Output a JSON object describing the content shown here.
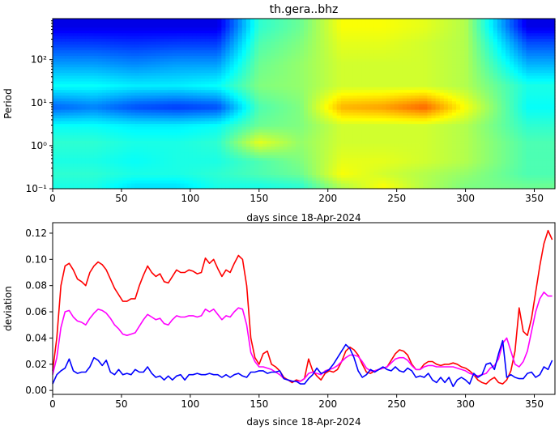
{
  "chart_data": [
    {
      "type": "heatmap",
      "title": "th.gera..bhz",
      "xlabel": "days since 18-Apr-2024",
      "ylabel": "Period",
      "xlim": [
        0,
        365
      ],
      "ylim": [
        0.1,
        900
      ],
      "yscale": "log",
      "xticks": [
        0,
        50,
        100,
        150,
        200,
        250,
        300,
        350
      ],
      "xtick_labels": [
        "0",
        "50",
        "100",
        "150",
        "200",
        "250",
        "300",
        "350"
      ],
      "yticks": [
        0.1,
        1,
        10,
        100
      ],
      "ytick_labels": [
        "10⁻¹",
        "10⁰",
        "10¹",
        "10²"
      ],
      "colormap": "jet",
      "value_range": [
        0,
        1
      ],
      "rows": [
        {
          "period": 0.12,
          "values": [
            0.4,
            0.4,
            0.35,
            0.35,
            0.4,
            0.4,
            0.42,
            0.55,
            0.62,
            0.55,
            0.5,
            0.48
          ]
        },
        {
          "period": 0.22,
          "values": [
            0.42,
            0.42,
            0.4,
            0.4,
            0.42,
            0.45,
            0.48,
            0.62,
            0.58,
            0.55,
            0.52,
            0.45
          ]
        },
        {
          "period": 0.45,
          "values": [
            0.4,
            0.4,
            0.38,
            0.4,
            0.4,
            0.45,
            0.5,
            0.6,
            0.6,
            0.58,
            0.55,
            0.45
          ]
        },
        {
          "period": 1.2,
          "values": [
            0.42,
            0.42,
            0.4,
            0.4,
            0.42,
            0.6,
            0.52,
            0.58,
            0.58,
            0.58,
            0.55,
            0.45
          ]
        },
        {
          "period": 3.0,
          "values": [
            0.38,
            0.38,
            0.36,
            0.36,
            0.38,
            0.48,
            0.5,
            0.58,
            0.58,
            0.58,
            0.55,
            0.42
          ]
        },
        {
          "period": 8.0,
          "values": [
            0.22,
            0.25,
            0.2,
            0.18,
            0.2,
            0.45,
            0.5,
            0.7,
            0.72,
            0.78,
            0.62,
            0.38
          ]
        },
        {
          "period": 25.0,
          "values": [
            0.38,
            0.38,
            0.36,
            0.36,
            0.38,
            0.5,
            0.52,
            0.58,
            0.58,
            0.58,
            0.55,
            0.4
          ]
        },
        {
          "period": 80.0,
          "values": [
            0.28,
            0.28,
            0.26,
            0.28,
            0.28,
            0.48,
            0.52,
            0.58,
            0.58,
            0.58,
            0.55,
            0.3
          ]
        },
        {
          "period": 250.0,
          "values": [
            0.18,
            0.18,
            0.17,
            0.18,
            0.18,
            0.45,
            0.5,
            0.6,
            0.6,
            0.58,
            0.55,
            0.2
          ]
        },
        {
          "period": 600.0,
          "values": [
            0.1,
            0.1,
            0.1,
            0.1,
            0.1,
            0.42,
            0.48,
            0.62,
            0.62,
            0.6,
            0.55,
            0.1
          ]
        }
      ],
      "columns_days": [
        0,
        30,
        60,
        90,
        120,
        150,
        180,
        210,
        240,
        270,
        300,
        345
      ]
    },
    {
      "type": "line",
      "xlabel": "days since 18-Apr-2024",
      "ylabel": "deviation",
      "xlim": [
        0,
        365
      ],
      "ylim": [
        -0.003,
        0.128
      ],
      "xticks": [
        0,
        50,
        100,
        150,
        200,
        250,
        300,
        350
      ],
      "xtick_labels": [
        "0",
        "50",
        "100",
        "150",
        "200",
        "250",
        "300",
        "350"
      ],
      "yticks": [
        0.0,
        0.02,
        0.04,
        0.06,
        0.08,
        0.1,
        0.12
      ],
      "ytick_labels": [
        "0.00",
        "0.02",
        "0.04",
        "0.06",
        "0.08",
        "0.10",
        "0.12"
      ],
      "x": [
        0,
        3,
        6,
        9,
        12,
        15,
        18,
        21,
        24,
        27,
        30,
        33,
        36,
        39,
        42,
        45,
        48,
        51,
        54,
        57,
        60,
        63,
        66,
        69,
        72,
        75,
        78,
        81,
        84,
        87,
        90,
        93,
        96,
        99,
        102,
        105,
        108,
        111,
        114,
        117,
        120,
        123,
        126,
        129,
        132,
        135,
        138,
        141,
        144,
        147,
        150,
        153,
        156,
        159,
        162,
        165,
        168,
        171,
        174,
        177,
        180,
        183,
        186,
        189,
        192,
        195,
        198,
        201,
        204,
        207,
        210,
        213,
        216,
        219,
        222,
        225,
        228,
        231,
        234,
        237,
        240,
        243,
        246,
        249,
        252,
        255,
        258,
        261,
        264,
        267,
        270,
        273,
        276,
        279,
        282,
        285,
        288,
        291,
        294,
        297,
        300,
        303,
        306,
        309,
        312,
        315,
        318,
        321,
        324,
        327,
        330,
        333,
        336,
        339,
        342,
        345,
        348,
        351,
        354,
        357,
        360,
        363
      ],
      "series": [
        {
          "color": "#ff0000",
          "values": [
            0.015,
            0.04,
            0.08,
            0.095,
            0.097,
            0.092,
            0.085,
            0.083,
            0.08,
            0.09,
            0.095,
            0.098,
            0.096,
            0.092,
            0.085,
            0.078,
            0.073,
            0.068,
            0.068,
            0.07,
            0.07,
            0.08,
            0.088,
            0.095,
            0.09,
            0.087,
            0.089,
            0.083,
            0.082,
            0.087,
            0.092,
            0.09,
            0.09,
            0.092,
            0.091,
            0.089,
            0.09,
            0.101,
            0.097,
            0.1,
            0.093,
            0.087,
            0.092,
            0.09,
            0.097,
            0.103,
            0.1,
            0.08,
            0.04,
            0.025,
            0.02,
            0.028,
            0.03,
            0.02,
            0.018,
            0.015,
            0.01,
            0.008,
            0.006,
            0.008,
            0.007,
            0.009,
            0.024,
            0.015,
            0.011,
            0.008,
            0.013,
            0.015,
            0.014,
            0.016,
            0.022,
            0.03,
            0.033,
            0.031,
            0.027,
            0.02,
            0.014,
            0.013,
            0.015,
            0.016,
            0.017,
            0.018,
            0.023,
            0.028,
            0.031,
            0.03,
            0.027,
            0.02,
            0.016,
            0.016,
            0.02,
            0.022,
            0.022,
            0.02,
            0.019,
            0.02,
            0.02,
            0.021,
            0.02,
            0.018,
            0.017,
            0.015,
            0.012,
            0.008,
            0.006,
            0.005,
            0.008,
            0.01,
            0.006,
            0.005,
            0.008,
            0.015,
            0.03,
            0.063,
            0.045,
            0.042,
            0.055,
            0.075,
            0.095,
            0.112,
            0.122,
            0.115
          ]
        },
        {
          "color": "#ff00ff",
          "values": [
            0.012,
            0.025,
            0.048,
            0.06,
            0.061,
            0.056,
            0.053,
            0.052,
            0.05,
            0.055,
            0.059,
            0.062,
            0.061,
            0.059,
            0.055,
            0.05,
            0.047,
            0.043,
            0.042,
            0.043,
            0.044,
            0.049,
            0.054,
            0.058,
            0.056,
            0.054,
            0.055,
            0.051,
            0.05,
            0.054,
            0.057,
            0.056,
            0.056,
            0.057,
            0.057,
            0.056,
            0.057,
            0.062,
            0.06,
            0.062,
            0.058,
            0.054,
            0.057,
            0.056,
            0.06,
            0.063,
            0.062,
            0.05,
            0.029,
            0.022,
            0.018,
            0.018,
            0.017,
            0.016,
            0.014,
            0.012,
            0.009,
            0.008,
            0.007,
            0.007,
            0.007,
            0.009,
            0.013,
            0.014,
            0.013,
            0.012,
            0.015,
            0.016,
            0.017,
            0.019,
            0.022,
            0.025,
            0.027,
            0.027,
            0.026,
            0.022,
            0.017,
            0.015,
            0.015,
            0.016,
            0.017,
            0.018,
            0.021,
            0.024,
            0.025,
            0.025,
            0.023,
            0.019,
            0.016,
            0.016,
            0.018,
            0.019,
            0.019,
            0.018,
            0.018,
            0.018,
            0.018,
            0.018,
            0.017,
            0.016,
            0.015,
            0.013,
            0.012,
            0.011,
            0.012,
            0.013,
            0.017,
            0.019,
            0.024,
            0.036,
            0.04,
            0.03,
            0.02,
            0.018,
            0.022,
            0.03,
            0.045,
            0.06,
            0.07,
            0.075,
            0.072,
            0.072
          ]
        },
        {
          "color": "#0000ff",
          "values": [
            0.005,
            0.012,
            0.015,
            0.017,
            0.024,
            0.015,
            0.013,
            0.014,
            0.014,
            0.018,
            0.025,
            0.023,
            0.019,
            0.023,
            0.014,
            0.012,
            0.016,
            0.012,
            0.013,
            0.012,
            0.016,
            0.014,
            0.014,
            0.018,
            0.013,
            0.01,
            0.011,
            0.008,
            0.011,
            0.008,
            0.011,
            0.012,
            0.008,
            0.012,
            0.012,
            0.013,
            0.012,
            0.012,
            0.013,
            0.012,
            0.012,
            0.01,
            0.012,
            0.01,
            0.012,
            0.013,
            0.011,
            0.01,
            0.014,
            0.014,
            0.015,
            0.015,
            0.013,
            0.014,
            0.014,
            0.015,
            0.009,
            0.008,
            0.007,
            0.007,
            0.005,
            0.005,
            0.009,
            0.012,
            0.017,
            0.013,
            0.014,
            0.016,
            0.02,
            0.025,
            0.03,
            0.035,
            0.032,
            0.025,
            0.015,
            0.01,
            0.012,
            0.016,
            0.014,
            0.016,
            0.018,
            0.016,
            0.015,
            0.018,
            0.015,
            0.014,
            0.017,
            0.015,
            0.01,
            0.011,
            0.01,
            0.013,
            0.008,
            0.006,
            0.01,
            0.006,
            0.01,
            0.003,
            0.008,
            0.01,
            0.008,
            0.005,
            0.013,
            0.01,
            0.012,
            0.02,
            0.021,
            0.016,
            0.028,
            0.038,
            0.01,
            0.012,
            0.01,
            0.009,
            0.009,
            0.013,
            0.014,
            0.01,
            0.012,
            0.018,
            0.016,
            0.023
          ]
        }
      ]
    }
  ]
}
